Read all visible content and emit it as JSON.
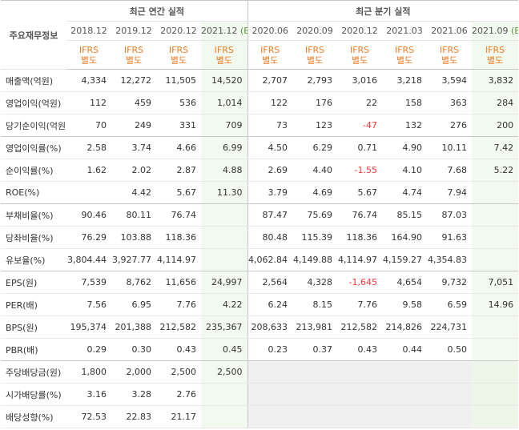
{
  "table": {
    "corner_label": "주요재무정보",
    "groups": {
      "annual": "최근 연간 실적",
      "quarterly": "최근 분기 실적"
    },
    "est_marker": "(E)",
    "periods": [
      {
        "label": "2018.12",
        "est": false
      },
      {
        "label": "2019.12",
        "est": false
      },
      {
        "label": "2020.12",
        "est": false
      },
      {
        "label": "2021.12",
        "est": true
      },
      {
        "label": "2020.06",
        "est": false
      },
      {
        "label": "2020.09",
        "est": false
      },
      {
        "label": "2020.12",
        "est": false
      },
      {
        "label": "2021.03",
        "est": false
      },
      {
        "label": "2021.06",
        "est": false
      },
      {
        "label": "2021.09",
        "est": true
      }
    ],
    "ifrs_line1": "IFRS",
    "ifrs_line2": "별도",
    "rows": [
      {
        "label": "매출액(억원)",
        "values": [
          "4,334",
          "12,272",
          "11,505",
          "14,520",
          "2,707",
          "2,793",
          "3,016",
          "3,218",
          "3,594",
          "3,832"
        ]
      },
      {
        "label": "영업이익(억원)",
        "values": [
          "112",
          "459",
          "536",
          "1,014",
          "122",
          "176",
          "22",
          "158",
          "363",
          "284"
        ]
      },
      {
        "label": "당기순이익(억원)",
        "values": [
          "70",
          "249",
          "331",
          "709",
          "73",
          "123",
          "-47",
          "132",
          "276",
          "200"
        ]
      },
      {
        "label": "영업이익률(%)",
        "values": [
          "2.58",
          "3.74",
          "4.66",
          "6.99",
          "4.50",
          "6.29",
          "0.71",
          "4.90",
          "10.11",
          "7.42"
        ]
      },
      {
        "label": "순이익률(%)",
        "values": [
          "1.62",
          "2.02",
          "2.87",
          "4.88",
          "2.69",
          "4.40",
          "-1.55",
          "4.10",
          "7.68",
          "5.22"
        ]
      },
      {
        "label": "ROE(%)",
        "values": [
          "",
          "4.42",
          "5.67",
          "11.30",
          "3.79",
          "4.69",
          "5.67",
          "4.74",
          "7.94",
          ""
        ]
      },
      {
        "label": "부채비율(%)",
        "values": [
          "90.46",
          "80.11",
          "76.74",
          "",
          "87.47",
          "75.69",
          "76.74",
          "85.15",
          "87.03",
          ""
        ]
      },
      {
        "label": "당좌비율(%)",
        "values": [
          "76.29",
          "103.88",
          "118.36",
          "",
          "80.48",
          "115.39",
          "118.36",
          "164.90",
          "91.63",
          ""
        ]
      },
      {
        "label": "유보율(%)",
        "values": [
          "3,804.44",
          "3,927.77",
          "4,114.97",
          "",
          "4,062.84",
          "4,149.88",
          "4,114.97",
          "4,159.27",
          "4,354.83",
          ""
        ]
      },
      {
        "label": "EPS(원)",
        "values": [
          "7,539",
          "8,762",
          "11,656",
          "24,997",
          "2,564",
          "4,328",
          "-1,645",
          "4,654",
          "9,732",
          "7,051"
        ]
      },
      {
        "label": "PER(배)",
        "values": [
          "7.56",
          "6.95",
          "7.76",
          "4.22",
          "6.24",
          "8.15",
          "7.76",
          "9.58",
          "6.59",
          "14.96"
        ]
      },
      {
        "label": "BPS(원)",
        "values": [
          "195,374",
          "201,388",
          "212,582",
          "235,367",
          "208,633",
          "213,981",
          "212,582",
          "214,826",
          "224,731",
          ""
        ]
      },
      {
        "label": "PBR(배)",
        "values": [
          "0.29",
          "0.30",
          "0.43",
          "0.45",
          "0.23",
          "0.37",
          "0.43",
          "0.44",
          "0.50",
          ""
        ]
      },
      {
        "label": "주당배당금(원)",
        "values": [
          "1,800",
          "2,000",
          "2,500",
          "2,500",
          "",
          "",
          "",
          "",
          "",
          ""
        ]
      },
      {
        "label": "시가배당률(%)",
        "values": [
          "3.16",
          "3.28",
          "2.76",
          "",
          "",
          "",
          "",
          "",
          "",
          ""
        ]
      },
      {
        "label": "배당성향(%)",
        "values": [
          "72.53",
          "22.83",
          "21.17",
          "",
          "",
          "",
          "",
          "",
          "",
          ""
        ]
      }
    ]
  }
}
